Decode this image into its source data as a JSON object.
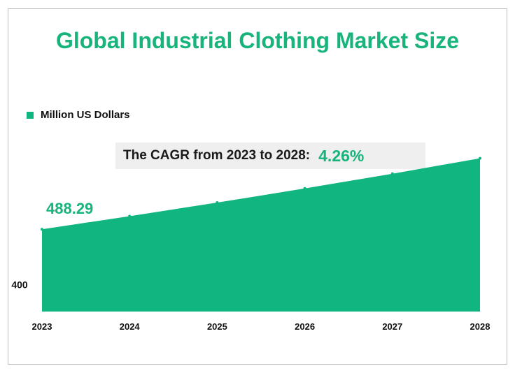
{
  "title": "Global Industrial Clothing Market Size",
  "legend": {
    "label": "Million US Dollars",
    "color": "#10b580"
  },
  "cagr": {
    "label": "The CAGR from 2023 to 2028:",
    "value": "4.26%"
  },
  "colors": {
    "accent": "#18b47b",
    "area": "#10b580"
  },
  "chart_data": {
    "type": "area",
    "title": "Global Industrial Clothing Market Size",
    "x": [
      "2023",
      "2024",
      "2025",
      "2026",
      "2027",
      "2028"
    ],
    "series": [
      {
        "name": "Million US Dollars",
        "values": [
          488.29,
          509.1,
          530.8,
          553.4,
          576.9,
          601.5
        ]
      }
    ],
    "y_ticks": [
      400
    ],
    "ylim": [
      357,
      620
    ],
    "data_labels": [
      {
        "x": "2023",
        "text": "488.29"
      }
    ],
    "grid": false,
    "legend_position": "top-left"
  }
}
